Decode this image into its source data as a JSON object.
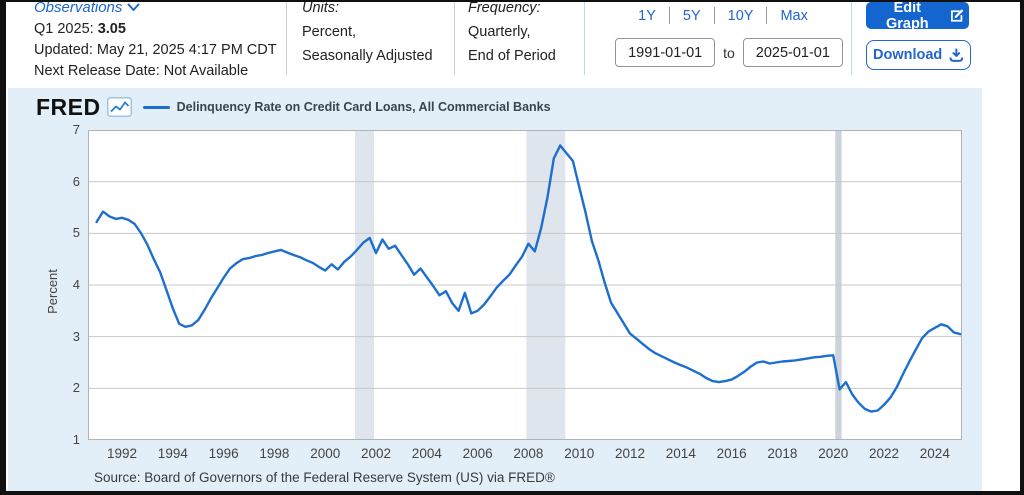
{
  "header": {
    "observations_label": "Observations",
    "latest_period": "Q1 2025:",
    "latest_value": "3.05",
    "updated": "Updated: May 21, 2025 4:17 PM CDT",
    "next_release": "Next Release Date: Not Available",
    "units_label": "Units:",
    "units_line1": "Percent,",
    "units_line2": "Seasonally Adjusted",
    "frequency_label": "Frequency:",
    "frequency_line1": "Quarterly,",
    "frequency_line2": "End of Period",
    "range_buttons": [
      "1Y",
      "5Y",
      "10Y",
      "Max"
    ],
    "date_from": "1991-01-01",
    "to_label": "to",
    "date_to": "2025-01-01",
    "edit_graph_label": "Edit Graph",
    "download_label": "Download"
  },
  "chart": {
    "brand": "FRED",
    "legend_label": "Delinquency Rate on Credit Card Loans, All Commercial Banks",
    "source": "Source: Board of Governors of the Federal Reserve System (US) via FRED®"
  },
  "colors": {
    "accent_blue": "#2166cc",
    "edit_button_bg": "#1565d0",
    "panel_bg": "#e2eef8",
    "line": "#1d6fce",
    "grid": "#c8c8c8",
    "plot_border": "#b3b3b3",
    "recession_band": "#dfe5ec",
    "recession_band_narrow": "#ccd3db"
  },
  "chart_data": {
    "type": "line",
    "title": "Delinquency Rate on Credit Card Loans, All Commercial Banks",
    "ylabel": "Percent",
    "ylim": [
      1,
      7
    ],
    "yticks": [
      1,
      2,
      3,
      4,
      5,
      6,
      7
    ],
    "xlim": [
      1990.66,
      2025.07
    ],
    "xticks": [
      1992,
      1994,
      1996,
      1998,
      2000,
      2002,
      2004,
      2006,
      2008,
      2010,
      2012,
      2014,
      2016,
      2018,
      2020,
      2022,
      2024
    ],
    "x_start": 1991.0,
    "x_step_years": 0.25,
    "series_name": "Delinquency Rate on Credit Card Loans, All Commercial Banks (Percent)",
    "values": [
      5.22,
      5.42,
      5.33,
      5.28,
      5.3,
      5.26,
      5.18,
      5.0,
      4.78,
      4.5,
      4.25,
      3.9,
      3.55,
      3.25,
      3.19,
      3.22,
      3.32,
      3.52,
      3.74,
      3.94,
      4.14,
      4.32,
      4.42,
      4.5,
      4.52,
      4.56,
      4.58,
      4.62,
      4.65,
      4.68,
      4.63,
      4.58,
      4.54,
      4.48,
      4.43,
      4.35,
      4.28,
      4.4,
      4.3,
      4.45,
      4.55,
      4.68,
      4.82,
      4.91,
      4.62,
      4.88,
      4.7,
      4.76,
      4.58,
      4.4,
      4.2,
      4.32,
      4.15,
      3.98,
      3.8,
      3.88,
      3.65,
      3.5,
      3.85,
      3.45,
      3.5,
      3.62,
      3.78,
      3.95,
      4.08,
      4.2,
      4.38,
      4.55,
      4.8,
      4.65,
      5.1,
      5.7,
      6.45,
      6.7,
      6.55,
      6.4,
      5.9,
      5.4,
      4.85,
      4.48,
      4.05,
      3.66,
      3.46,
      3.26,
      3.06,
      2.96,
      2.86,
      2.76,
      2.68,
      2.62,
      2.56,
      2.5,
      2.45,
      2.4,
      2.34,
      2.28,
      2.2,
      2.14,
      2.12,
      2.14,
      2.17,
      2.24,
      2.32,
      2.42,
      2.5,
      2.52,
      2.48,
      2.5,
      2.52,
      2.53,
      2.54,
      2.56,
      2.58,
      2.6,
      2.61,
      2.63,
      2.64,
      1.98,
      2.12,
      1.88,
      1.72,
      1.6,
      1.55,
      1.57,
      1.68,
      1.82,
      2.02,
      2.28,
      2.52,
      2.75,
      2.97,
      3.1,
      3.17,
      3.24,
      3.2,
      3.08,
      3.05
    ],
    "recession_bands": [
      [
        2001.17,
        2001.92
      ],
      [
        2007.92,
        2009.45
      ],
      [
        2020.08,
        2020.33
      ]
    ],
    "grid": true,
    "legend_position": "top-left"
  }
}
